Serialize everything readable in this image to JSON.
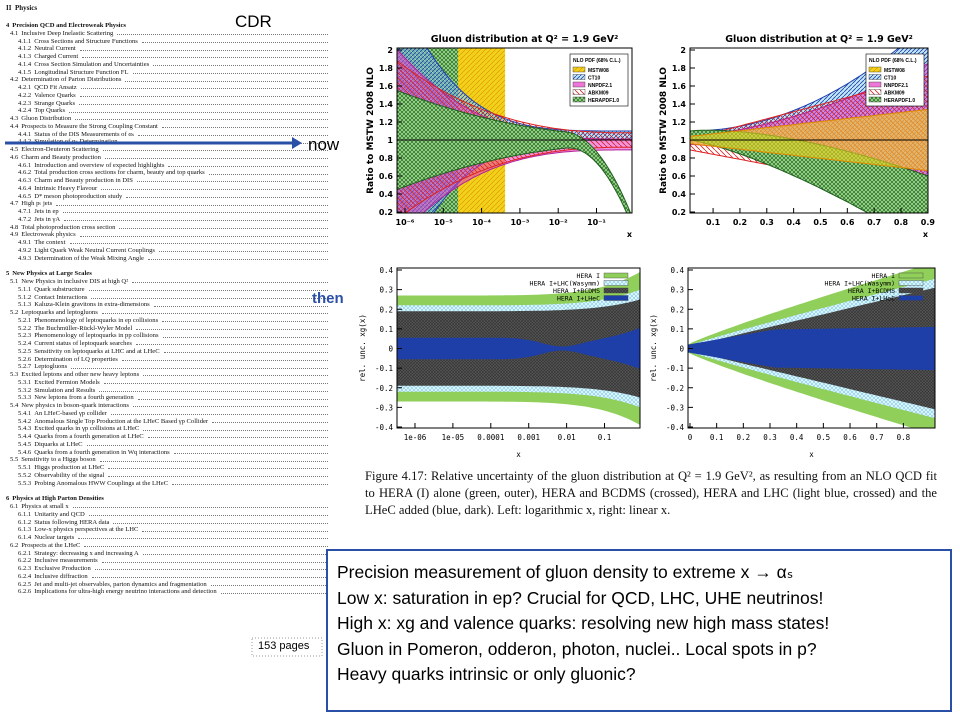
{
  "labels": {
    "cdr": "CDR",
    "now": "now",
    "then": "then",
    "pages": "153 pages"
  },
  "toc": {
    "part": "II",
    "part_title": "Physics",
    "entries": [
      {
        "num": "4",
        "title": "Precision QCD and Electroweak Physics"
      },
      {
        "num": "4.1",
        "title": "Inclusive Deep Inelastic Scattering"
      },
      {
        "num": "4.1.1",
        "title": "Cross Sections and Structure Functions"
      },
      {
        "num": "4.1.2",
        "title": "Neutral Current"
      },
      {
        "num": "4.1.3",
        "title": "Charged Current"
      },
      {
        "num": "4.1.4",
        "title": "Cross Section Simulation and Uncertainties"
      },
      {
        "num": "4.1.5",
        "title": "Longitudinal Structure Function FL"
      },
      {
        "num": "4.2",
        "title": "Determination of Parton Distributions"
      },
      {
        "num": "4.2.1",
        "title": "QCD Fit Ansatz"
      },
      {
        "num": "4.2.2",
        "title": "Valence Quarks"
      },
      {
        "num": "4.2.3",
        "title": "Strange Quarks"
      },
      {
        "num": "4.2.4",
        "title": "Top Quarks"
      },
      {
        "num": "4.3",
        "title": "Gluon Distribution"
      },
      {
        "num": "4.4",
        "title": "Prospects to Measure the Strong Coupling Constant"
      },
      {
        "num": "4.4.1",
        "title": "Status of the DIS Measurements of αₛ"
      },
      {
        "num": "4.4.2",
        "title": "Simulation of αₛ Determination"
      },
      {
        "num": "4.5",
        "title": "Electron-Deuteron Scattering"
      },
      {
        "num": "4.6",
        "title": "Charm and Beauty production"
      },
      {
        "num": "4.6.1",
        "title": "Introduction and overview of expected highlights"
      },
      {
        "num": "4.6.2",
        "title": "Total production cross sections for charm, beauty and top quarks"
      },
      {
        "num": "4.6.3",
        "title": "Charm and Beauty production in DIS"
      },
      {
        "num": "4.6.4",
        "title": "Intrinsic Heavy Flavour"
      },
      {
        "num": "4.6.5",
        "title": "D* meson photoproduction study"
      },
      {
        "num": "4.7",
        "title": "High pₜ jets"
      },
      {
        "num": "4.7.1",
        "title": "Jets in ep"
      },
      {
        "num": "4.7.2",
        "title": "Jets in γA"
      },
      {
        "num": "4.8",
        "title": "Total photoproduction cross section"
      },
      {
        "num": "4.9",
        "title": "Electroweak physics"
      },
      {
        "num": "4.9.1",
        "title": "The context"
      },
      {
        "num": "4.9.2",
        "title": "Light Quark Weak Neutral Current Couplings"
      },
      {
        "num": "4.9.3",
        "title": "Determination of the Weak Mixing Angle"
      },
      {
        "num": "5",
        "title": "New Physics at Large Scales"
      },
      {
        "num": "5.1",
        "title": "New Physics in inclusive DIS at high Q²"
      },
      {
        "num": "5.1.1",
        "title": "Quark substructure"
      },
      {
        "num": "5.1.2",
        "title": "Contact Interactions"
      },
      {
        "num": "5.1.3",
        "title": "Kaluza-Klein gravitons in extra-dimensions"
      },
      {
        "num": "5.2",
        "title": "Leptoquarks and leptogluons"
      },
      {
        "num": "5.2.1",
        "title": "Phenomenology of leptoquarks in ep collisions"
      },
      {
        "num": "5.2.2",
        "title": "The Buchmüller-Rückl-Wyler Model"
      },
      {
        "num": "5.2.3",
        "title": "Phenomenology of leptoquarks in pp collisions"
      },
      {
        "num": "5.2.4",
        "title": "Current status of leptoquark searches"
      },
      {
        "num": "5.2.5",
        "title": "Sensitivity on leptoquarks at LHC and at LHeC"
      },
      {
        "num": "5.2.6",
        "title": "Determination of LQ properties"
      },
      {
        "num": "5.2.7",
        "title": "Leptogluons"
      },
      {
        "num": "5.3",
        "title": "Excited leptons and other new heavy leptons"
      },
      {
        "num": "5.3.1",
        "title": "Excited Fermion Models"
      },
      {
        "num": "5.3.2",
        "title": "Simulation and Results"
      },
      {
        "num": "5.3.3",
        "title": "New leptons from a fourth generation"
      },
      {
        "num": "5.4",
        "title": "New physics in boson-quark interactions"
      },
      {
        "num": "5.4.1",
        "title": "An LHeC-based γp collider"
      },
      {
        "num": "5.4.2",
        "title": "Anomalous Single Top Production at the LHeC Based γp Collider"
      },
      {
        "num": "5.4.3",
        "title": "Excited quarks in γp collisions at LHeC"
      },
      {
        "num": "5.4.4",
        "title": "Quarks from a fourth generation at LHeC"
      },
      {
        "num": "5.4.5",
        "title": "Diquarks at LHeC"
      },
      {
        "num": "5.4.6",
        "title": "Quarks from a fourth generation in Wq interactions"
      },
      {
        "num": "5.5",
        "title": "Sensitivity to a Higgs boson"
      },
      {
        "num": "5.5.1",
        "title": "Higgs production at LHeC"
      },
      {
        "num": "5.5.2",
        "title": "Observability of the signal"
      },
      {
        "num": "5.5.3",
        "title": "Probing Anomalous HWW Couplings at the LHeC"
      },
      {
        "num": "6",
        "title": "Physics at High Parton Densities"
      },
      {
        "num": "6.1",
        "title": "Physics at small x"
      },
      {
        "num": "6.1.1",
        "title": "Unitarity and QCD"
      },
      {
        "num": "6.1.2",
        "title": "Status following HERA data"
      },
      {
        "num": "6.1.3",
        "title": "Low-x physics perspectives at the LHC"
      },
      {
        "num": "6.1.4",
        "title": "Nuclear targets"
      },
      {
        "num": "6.2",
        "title": "Prospects at the LHeC"
      },
      {
        "num": "6.2.1",
        "title": "Strategy: decreasing x and increasing A"
      },
      {
        "num": "6.2.2",
        "title": "Inclusive measurements"
      },
      {
        "num": "6.2.3",
        "title": "Exclusive Production"
      },
      {
        "num": "6.2.4",
        "title": "Inclusive diffraction"
      },
      {
        "num": "6.2.5",
        "title": "Jet and multi-jet observables, parton dynamics and fragmentation"
      },
      {
        "num": "6.2.6",
        "title": "Implications for ultra-high energy neutrino interactions and detection"
      }
    ]
  },
  "figures": [
    {
      "title": "Gluon distribution at Q² = 1.9 GeV²",
      "ylabel": "Ratio to MSTW 2008 NLO",
      "xlabel": "x",
      "yticks": [
        "2",
        "1.8",
        "1.6",
        "1.4",
        "1.2",
        "1",
        "0.8",
        "0.6",
        "0.4",
        "0.2"
      ],
      "xticks": [
        "10⁻⁶",
        "10⁻⁵",
        "10⁻⁴",
        "10⁻³",
        "10⁻²",
        "10⁻¹"
      ],
      "legend_title": "NLO PDF (68% C.L.)",
      "legend": [
        "MSTW08",
        "CT10",
        "NNPDF2.1",
        "ABKM09",
        "HERAPDF1.0"
      ]
    },
    {
      "title": "Gluon distribution at Q² = 1.9 GeV²",
      "ylabel": "Ratio to MSTW 2008 NLO",
      "xlabel": "x",
      "yticks": [
        "2",
        "1.8",
        "1.6",
        "1.4",
        "1.2",
        "1",
        "0.8",
        "0.6",
        "0.4",
        "0.2"
      ],
      "xticks": [
        "0.1",
        "0.2",
        "0.3",
        "0.4",
        "0.5",
        "0.6",
        "0.7",
        "0.8",
        "0.9"
      ],
      "legend_title": "NLO PDF (68% C.L.)",
      "legend": [
        "MSTW08",
        "CT10",
        "NNPDF2.1",
        "ABKM09",
        "HERAPDF1.0"
      ]
    },
    {
      "ylabel": "rel. unc. xg(x)",
      "xlabel": "x",
      "yticks": [
        "0.4",
        "0.3",
        "0.2",
        "0.1",
        "0",
        "-0.1",
        "-0.2",
        "-0.3",
        "-0.4"
      ],
      "xticks": [
        "1e-06",
        "1e-05",
        "0.0001",
        "0.001",
        "0.01",
        "0.1"
      ],
      "legend": [
        "HERA I",
        "HERA I+LHC(Wasymm)",
        "HERA I+BCDMS",
        "HERA I+LHeC"
      ]
    },
    {
      "ylabel": "rel. unc. xg(x)",
      "xlabel": "x",
      "yticks": [
        "0.4",
        "0.3",
        "0.2",
        "0.1",
        "0",
        "-0.1",
        "-0.2",
        "-0.3",
        "-0.4"
      ],
      "xticks": [
        "0",
        "0.1",
        "0.2",
        "0.3",
        "0.4",
        "0.5",
        "0.6",
        "0.7",
        "0.8"
      ],
      "legend": [
        "HERA I",
        "HERA I+LHC(Wasymm)",
        "HERA I+BCDMS",
        "HERA I+LHeC"
      ]
    }
  ],
  "caption": "Figure 4.17: Relative uncertainty of the gluon distribution at Q² = 1.9 GeV², as resulting from an NLO QCD fit to HERA (I) alone (green, outer), HERA and BCDMS (crossed), HERA and LHC (light blue, crossed) and the LHeC added (blue, dark). Left: logarithmic x, right: linear x.",
  "summary": [
    "Precision measurement of gluon density to extreme x  →  αₛ",
    "Low x: saturation in ep? Crucial for QCD, LHC, UHE neutrinos!",
    "High x: xg and valence quarks: resolving new high mass states!",
    "Gluon in Pomeron, odderon, photon, nuclei.. Local spots in p?",
    "Heavy quarks intrinsic or only gluonic?"
  ]
}
